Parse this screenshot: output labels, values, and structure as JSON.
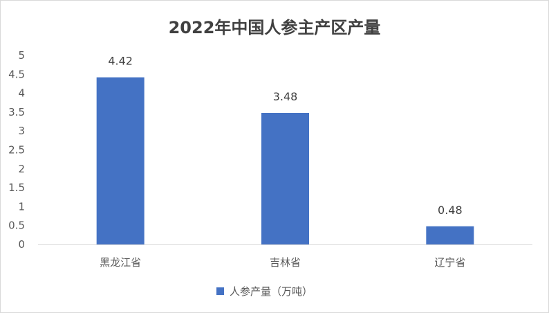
{
  "chart_data": {
    "type": "bar",
    "title": "2022年中国人参主产区产量",
    "categories": [
      "黑龙江省",
      "吉林省",
      "辽宁省"
    ],
    "series": [
      {
        "name": "人参产量（万吨）",
        "values": [
          4.42,
          3.48,
          0.48
        ],
        "color": "#4472c4"
      }
    ],
    "ylim": [
      0,
      5
    ],
    "yticks": [
      0,
      0.5,
      1,
      1.5,
      2,
      2.5,
      3,
      3.5,
      4,
      4.5,
      5
    ],
    "data_labels": true,
    "grid": false,
    "legend": "bottom"
  }
}
